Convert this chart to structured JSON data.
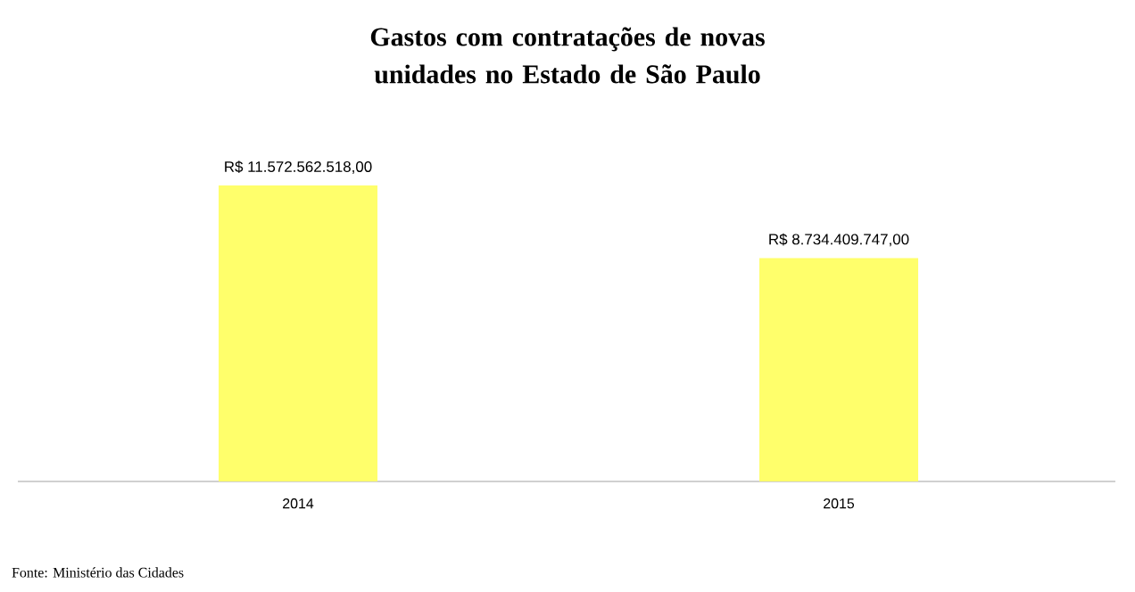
{
  "chart_data": {
    "type": "bar",
    "title": "Gastos com contratações de novas unidades  no Estado de São Paulo",
    "categories": [
      "2014",
      "2015"
    ],
    "values": [
      11572562518,
      8734409747
    ],
    "value_labels": [
      "R$ 11.572.562.518,00",
      "R$ 8.734.409.747,00"
    ],
    "color": "#ffff6b",
    "annotations": [
      "Fonte: Ministério das Cidades"
    ]
  }
}
